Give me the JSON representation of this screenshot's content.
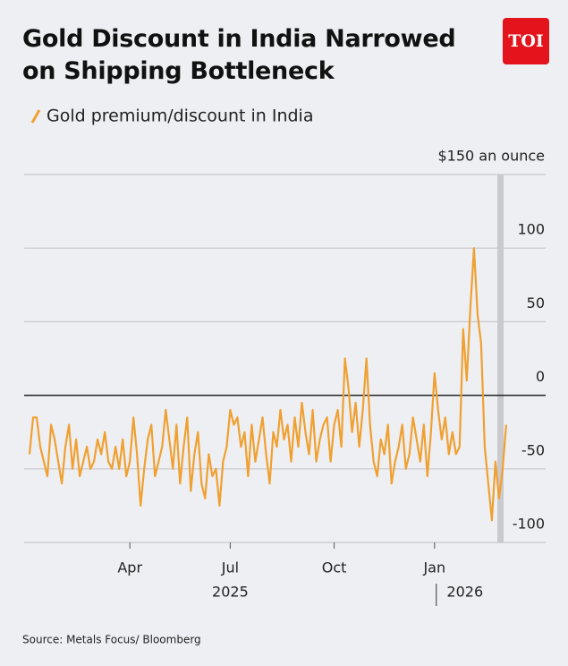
{
  "chart_data": {
    "type": "line",
    "title": "Gold Discount in India Narrowed on Shipping Bottleneck",
    "logo": "TOI",
    "source": "Source: Metals Focus/ Bloomberg",
    "series": [
      {
        "name": "Gold premium/discount in India",
        "color": "#f0a030",
        "values": [
          -40,
          -15,
          -15,
          -35,
          -45,
          -55,
          -20,
          -30,
          -45,
          -60,
          -35,
          -20,
          -50,
          -30,
          -55,
          -45,
          -35,
          -50,
          -45,
          -30,
          -40,
          -25,
          -45,
          -50,
          -35,
          -50,
          -30,
          -55,
          -45,
          -15,
          -40,
          -75,
          -50,
          -30,
          -20,
          -55,
          -45,
          -35,
          -10,
          -30,
          -50,
          -20,
          -60,
          -35,
          -15,
          -65,
          -40,
          -25,
          -60,
          -70,
          -40,
          -55,
          -50,
          -75,
          -45,
          -35,
          -10,
          -20,
          -15,
          -35,
          -25,
          -55,
          -20,
          -45,
          -30,
          -15,
          -40,
          -60,
          -25,
          -35,
          -10,
          -30,
          -20,
          -45,
          -15,
          -35,
          -5,
          -25,
          -40,
          -10,
          -45,
          -30,
          -20,
          -15,
          -45,
          -20,
          -10,
          -35,
          25,
          5,
          -25,
          -5,
          -35,
          -10,
          25,
          -20,
          -45,
          -55,
          -30,
          -40,
          -20,
          -60,
          -45,
          -35,
          -20,
          -50,
          -40,
          -15,
          -30,
          -45,
          -20,
          -55,
          -25,
          15,
          -10,
          -30,
          -15,
          -40,
          -25,
          -40,
          -35,
          45,
          10,
          60,
          100,
          55,
          35,
          -35,
          -60,
          -85,
          -45,
          -70,
          -50,
          -20
        ]
      }
    ],
    "xticks": [
      {
        "value": 28,
        "label": "Apr"
      },
      {
        "value": 56,
        "label": "Jul"
      },
      {
        "value": 85,
        "label": "Oct"
      },
      {
        "value": 113,
        "label": "Jan"
      }
    ],
    "x_group_labels": [
      "2025",
      "2026"
    ],
    "xlim": [
      -1.5,
      144
    ],
    "ylim": [
      -100,
      150
    ],
    "yticks": [
      -100,
      -50,
      0,
      50,
      100,
      {
        "value": 150,
        "label": "$150 an ounce"
      }
    ],
    "grid": true
  }
}
